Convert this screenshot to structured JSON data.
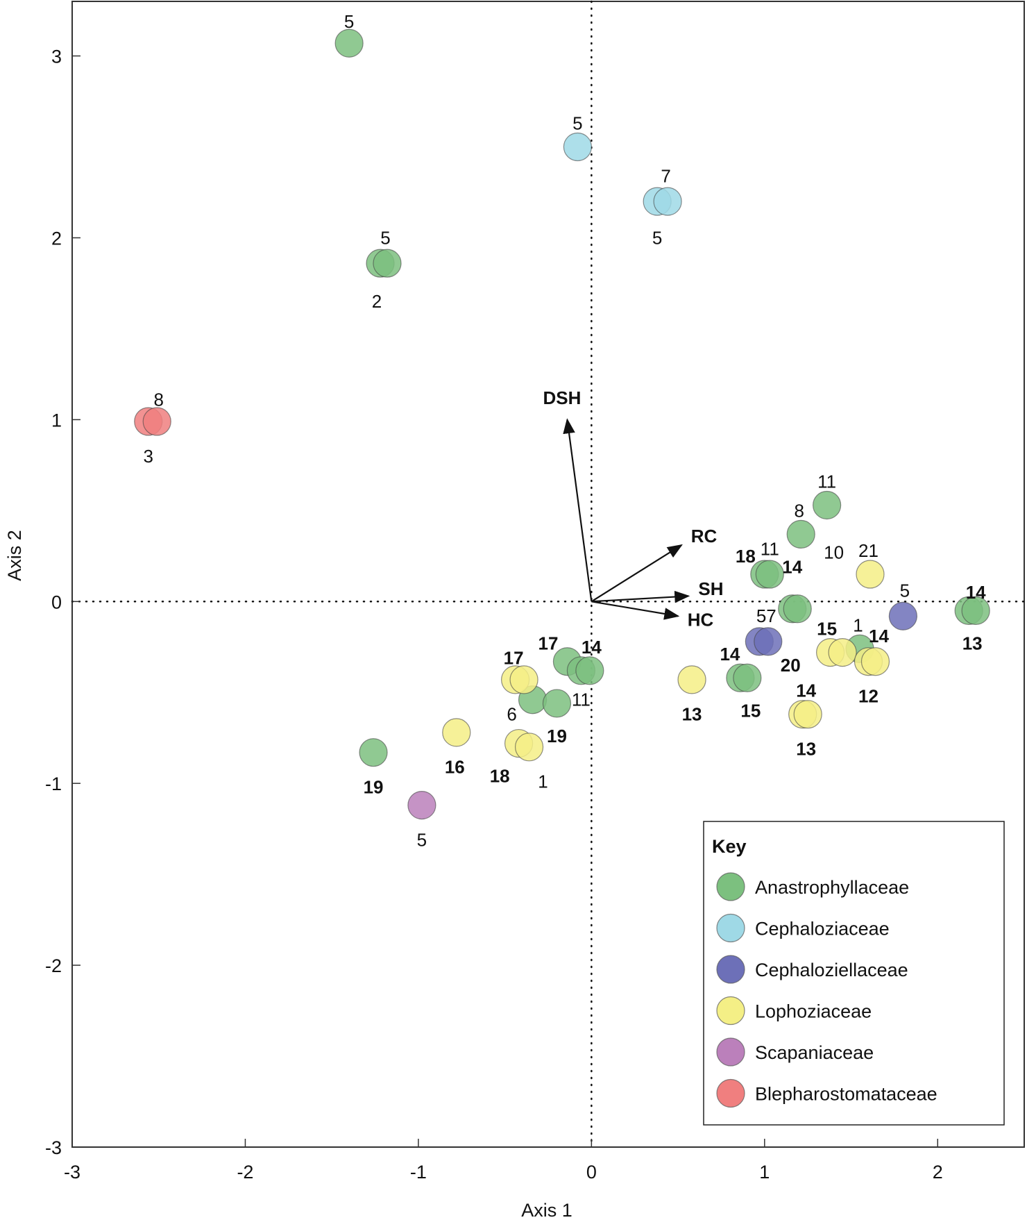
{
  "chart_data": {
    "type": "scatter",
    "title": "",
    "xlabel": "Axis 1",
    "ylabel": "Axis 2",
    "xlim": [
      -3,
      2.5
    ],
    "ylim": [
      -3,
      3.3
    ],
    "xticks": [
      -3,
      -2,
      -1,
      0,
      1,
      2
    ],
    "yticks": [
      -3,
      -2,
      -1,
      0,
      1,
      2,
      3
    ],
    "xtick_labels": [
      "-3",
      "-2",
      "-1",
      "0",
      "1",
      "2"
    ],
    "ytick_labels": [
      "-3",
      "-2",
      "-1",
      "0",
      "1",
      "2",
      "3"
    ],
    "grid": false,
    "reference_lines": {
      "x": 0,
      "y": 0,
      "style": "dotted"
    },
    "legend": {
      "title": "Key",
      "position": "bottom-right",
      "entries": [
        {
          "name": "Anastrophyllaceae",
          "color": "#7cc07f"
        },
        {
          "name": "Cephaloziaceae",
          "color": "#9fd9e6"
        },
        {
          "name": "Cephaloziellaceae",
          "color": "#6d70b8"
        },
        {
          "name": "Lophoziaceae",
          "color": "#f4ef86"
        },
        {
          "name": "Scapaniaceae",
          "color": "#bb80bb"
        },
        {
          "name": "Blepharostomataceae",
          "color": "#f07f7f"
        }
      ]
    },
    "series": [
      {
        "name": "Anastrophyllaceae",
        "color": "#7cc07f",
        "points": [
          {
            "x": -1.4,
            "y": 3.07
          },
          {
            "x": -1.22,
            "y": 1.86
          },
          {
            "x": -1.18,
            "y": 1.86
          },
          {
            "x": 1.36,
            "y": 0.53
          },
          {
            "x": 1.21,
            "y": 0.37
          },
          {
            "x": 1.0,
            "y": 0.15
          },
          {
            "x": 1.03,
            "y": 0.15
          },
          {
            "x": 1.16,
            "y": -0.04
          },
          {
            "x": 1.19,
            "y": -0.04
          },
          {
            "x": 2.18,
            "y": -0.05
          },
          {
            "x": 2.22,
            "y": -0.05
          },
          {
            "x": 1.55,
            "y": -0.26
          },
          {
            "x": 0.86,
            "y": -0.42
          },
          {
            "x": 0.9,
            "y": -0.42
          },
          {
            "x": -0.14,
            "y": -0.33
          },
          {
            "x": -0.06,
            "y": -0.38
          },
          {
            "x": -0.01,
            "y": -0.38
          },
          {
            "x": -0.34,
            "y": -0.54
          },
          {
            "x": -0.2,
            "y": -0.56
          },
          {
            "x": -1.26,
            "y": -0.83
          }
        ]
      },
      {
        "name": "Cephaloziaceae",
        "color": "#9fd9e6",
        "points": [
          {
            "x": -0.08,
            "y": 2.5
          },
          {
            "x": 0.38,
            "y": 2.2
          },
          {
            "x": 0.44,
            "y": 2.2
          }
        ]
      },
      {
        "name": "Cephaloziellaceae",
        "color": "#6d70b8",
        "points": [
          {
            "x": 1.8,
            "y": -0.08
          },
          {
            "x": 0.97,
            "y": -0.22
          },
          {
            "x": 1.02,
            "y": -0.22
          }
        ]
      },
      {
        "name": "Lophoziaceae",
        "color": "#f4ef86",
        "points": [
          {
            "x": 1.61,
            "y": 0.15
          },
          {
            "x": 1.38,
            "y": -0.28
          },
          {
            "x": 1.45,
            "y": -0.28
          },
          {
            "x": 1.6,
            "y": -0.33
          },
          {
            "x": 1.64,
            "y": -0.33
          },
          {
            "x": 1.22,
            "y": -0.62
          },
          {
            "x": 1.25,
            "y": -0.62
          },
          {
            "x": 0.58,
            "y": -0.43
          },
          {
            "x": -0.44,
            "y": -0.43
          },
          {
            "x": -0.39,
            "y": -0.43
          },
          {
            "x": -0.42,
            "y": -0.78
          },
          {
            "x": -0.36,
            "y": -0.8
          },
          {
            "x": -0.78,
            "y": -0.72
          }
        ]
      },
      {
        "name": "Scapaniaceae",
        "color": "#bb80bb",
        "points": [
          {
            "x": -0.98,
            "y": -1.12
          }
        ]
      },
      {
        "name": "Blepharostomataceae",
        "color": "#f07f7f",
        "points": [
          {
            "x": -2.56,
            "y": 0.99
          },
          {
            "x": -2.51,
            "y": 0.99
          }
        ]
      }
    ],
    "vectors": [
      {
        "name": "DSH",
        "x": -0.14,
        "y": 1.0,
        "label_x": -0.17,
        "label_y": 1.12
      },
      {
        "name": "RC",
        "x": 0.52,
        "y": 0.31,
        "label_x": 0.65,
        "label_y": 0.36
      },
      {
        "name": "SH",
        "x": 0.56,
        "y": 0.03,
        "label_x": 0.69,
        "label_y": 0.07
      },
      {
        "name": "HC",
        "x": 0.5,
        "y": -0.08,
        "label_x": 0.63,
        "label_y": -0.1
      }
    ],
    "annotations": [
      {
        "text": "5",
        "x": -1.4,
        "y": 3.19,
        "bold": false
      },
      {
        "text": "5",
        "x": -0.08,
        "y": 2.63,
        "bold": false
      },
      {
        "text": "7",
        "x": 0.43,
        "y": 2.34,
        "bold": false
      },
      {
        "text": "5",
        "x": 0.38,
        "y": 2.0,
        "bold": false
      },
      {
        "text": "5",
        "x": -1.19,
        "y": 2.0,
        "bold": false
      },
      {
        "text": "2",
        "x": -1.24,
        "y": 1.65,
        "bold": false
      },
      {
        "text": "8",
        "x": -2.5,
        "y": 1.11,
        "bold": false
      },
      {
        "text": "3",
        "x": -2.56,
        "y": 0.8,
        "bold": false
      },
      {
        "text": "11",
        "x": 1.36,
        "y": 0.66,
        "bold": false
      },
      {
        "text": "8",
        "x": 1.2,
        "y": 0.5,
        "bold": false
      },
      {
        "text": "18",
        "x": 0.89,
        "y": 0.25,
        "bold": true
      },
      {
        "text": "11",
        "x": 1.03,
        "y": 0.29,
        "bold": false
      },
      {
        "text": "14",
        "x": 1.16,
        "y": 0.19,
        "bold": true
      },
      {
        "text": "10",
        "x": 1.4,
        "y": 0.27,
        "bold": false
      },
      {
        "text": "21",
        "x": 1.6,
        "y": 0.28,
        "bold": false
      },
      {
        "text": "5",
        "x": 1.81,
        "y": 0.06,
        "bold": false
      },
      {
        "text": "14",
        "x": 2.22,
        "y": 0.05,
        "bold": true
      },
      {
        "text": "13",
        "x": 2.2,
        "y": -0.23,
        "bold": true
      },
      {
        "text": "57",
        "x": 1.01,
        "y": -0.08,
        "bold": false
      },
      {
        "text": "15",
        "x": 1.36,
        "y": -0.15,
        "bold": true
      },
      {
        "text": "1",
        "x": 1.54,
        "y": -0.13,
        "bold": false
      },
      {
        "text": "14",
        "x": 1.66,
        "y": -0.19,
        "bold": true
      },
      {
        "text": "14",
        "x": 0.8,
        "y": -0.29,
        "bold": true
      },
      {
        "text": "20",
        "x": 1.15,
        "y": -0.35,
        "bold": true
      },
      {
        "text": "12",
        "x": 1.6,
        "y": -0.52,
        "bold": true
      },
      {
        "text": "14",
        "x": 1.24,
        "y": -0.49,
        "bold": true
      },
      {
        "text": "15",
        "x": 0.92,
        "y": -0.6,
        "bold": true
      },
      {
        "text": "13",
        "x": 1.24,
        "y": -0.81,
        "bold": true
      },
      {
        "text": "13",
        "x": 0.58,
        "y": -0.62,
        "bold": true
      },
      {
        "text": "17",
        "x": -0.25,
        "y": -0.23,
        "bold": true
      },
      {
        "text": "14",
        "x": 0.0,
        "y": -0.25,
        "bold": true
      },
      {
        "text": "17",
        "x": -0.45,
        "y": -0.31,
        "bold": true
      },
      {
        "text": "6",
        "x": -0.46,
        "y": -0.62,
        "bold": false
      },
      {
        "text": "11",
        "x": -0.06,
        "y": -0.54,
        "bold": false
      },
      {
        "text": "19",
        "x": -0.2,
        "y": -0.74,
        "bold": true
      },
      {
        "text": "16",
        "x": -0.79,
        "y": -0.91,
        "bold": true
      },
      {
        "text": "18",
        "x": -0.53,
        "y": -0.96,
        "bold": true
      },
      {
        "text": "1",
        "x": -0.28,
        "y": -0.99,
        "bold": false
      },
      {
        "text": "19",
        "x": -1.26,
        "y": -1.02,
        "bold": true
      },
      {
        "text": "5",
        "x": -0.98,
        "y": -1.31,
        "bold": false
      }
    ]
  }
}
